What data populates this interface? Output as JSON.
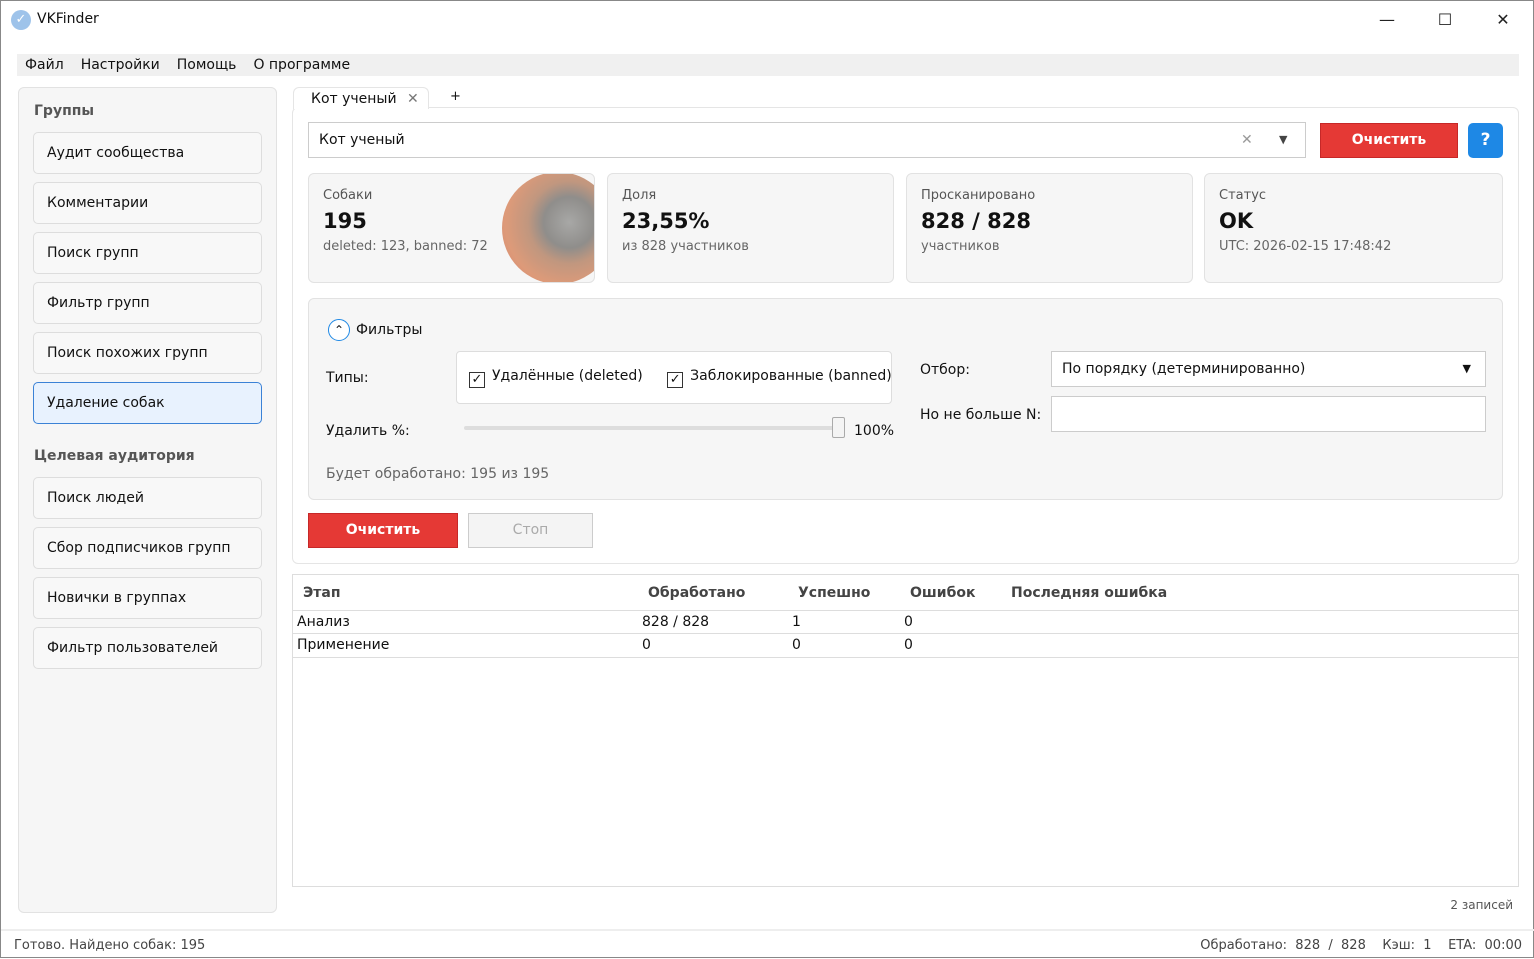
{
  "window": {
    "title": "VKFinder",
    "minimize": "—",
    "maximize": "☐",
    "close": "✕"
  },
  "menu": [
    "Файл",
    "Настройки",
    "Помощь",
    "О программе"
  ],
  "sidebar": {
    "section1": "Группы",
    "items1": [
      "Аудит сообщества",
      "Комментарии",
      "Поиск групп",
      "Фильтр групп",
      "Поиск похожих групп",
      "Удаление собак"
    ],
    "section2": "Целевая аудитория",
    "items2": [
      "Поиск людей",
      "Сбор подписчиков групп",
      "Новички в группах",
      "Фильтр пользователей"
    ],
    "active": "Удаление собак"
  },
  "tabs": {
    "active": "Кот ученый",
    "add": "+"
  },
  "group_select": {
    "value": "Кот ученый"
  },
  "buttons": {
    "clear_top": "Очистить",
    "help": "?",
    "clear": "Очистить",
    "stop": "Стоп"
  },
  "cards": [
    {
      "label": "Собаки",
      "value": "195",
      "sub": "deleted: 123, banned: 72"
    },
    {
      "label": "Доля",
      "value": "23,55%",
      "sub": "из 828 участников"
    },
    {
      "label": "Просканировано",
      "value": "828 / 828",
      "sub": "участников"
    },
    {
      "label": "Статус",
      "value": "OK",
      "sub": "UTC: 2026-02-15 17:48:42"
    }
  ],
  "filters": {
    "title": "Фильтры",
    "types_label": "Типы:",
    "deleted": {
      "label": "Удалённые (deleted)",
      "checked": true
    },
    "banned": {
      "label": "Заблокированные (banned)",
      "checked": true
    },
    "delete_pct_label": "Удалить %:",
    "delete_pct": 100,
    "delete_pct_text": "100%",
    "selection_label": "Отбор:",
    "selection_value": "По порядку (детерминированно)",
    "max_n_label": "Но не больше N:",
    "max_n_value": "",
    "summary": "Будет обработано: 195 из 195"
  },
  "table": {
    "headers": [
      "Этап",
      "Обработано",
      "Успешно",
      "Ошибок",
      "Последняя ошибка"
    ],
    "rows": [
      [
        "Анализ",
        "828 / 828",
        "1",
        "0",
        ""
      ],
      [
        "Применение",
        "0",
        "0",
        "0",
        ""
      ]
    ],
    "count": "2 записей"
  },
  "statusbar": {
    "left": "Готово. Найдено собак: 195",
    "right": "Обработано:  828  /  828    Кэш:  1    ETA:  00:00"
  },
  "colors": {
    "accent_red": "#e53935",
    "accent_blue": "#1e88e5"
  }
}
